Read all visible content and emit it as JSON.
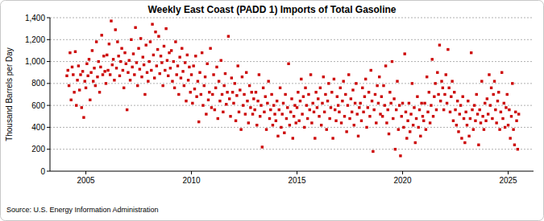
{
  "chart_data": {
    "type": "scatter",
    "title": "Weekly East Coast (PADD 1) Imports of Total Gasoline",
    "y_label": "Thousand Barrels per Day",
    "source": "Source: U.S. Energy Information Administration",
    "color": "#cc0000",
    "marker": "square",
    "grid": true,
    "xlim": [
      2003.3,
      2026.2
    ],
    "xticks": [
      2005,
      2010,
      2015,
      2020,
      2025
    ],
    "ylim": [
      0,
      1400
    ],
    "yticks": [
      0,
      {
        "value": 200,
        "label": "200"
      },
      400,
      600,
      800,
      {
        "value": 1000,
        "label": "1,000"
      },
      {
        "value": 1200,
        "label": "1,200"
      },
      {
        "value": 1400,
        "label": "1,400"
      }
    ],
    "x": [
      2004.1,
      2004.15,
      2004.2,
      2004.25,
      2004.3,
      2004.35,
      2004.4,
      2004.45,
      2004.5,
      2004.55,
      2004.6,
      2004.65,
      2004.7,
      2004.75,
      2004.8,
      2004.85,
      2004.9,
      2004.95,
      2005,
      2005.05,
      2005.1,
      2005.15,
      2005.2,
      2005.25,
      2005.3,
      2005.35,
      2005.4,
      2005.45,
      2005.5,
      2005.55,
      2005.6,
      2005.65,
      2005.7,
      2005.75,
      2005.8,
      2005.85,
      2005.9,
      2005.95,
      2006,
      2006.05,
      2006.1,
      2006.15,
      2006.2,
      2006.25,
      2006.3,
      2006.35,
      2006.4,
      2006.45,
      2006.5,
      2006.55,
      2006.6,
      2006.65,
      2006.7,
      2006.75,
      2006.8,
      2006.85,
      2006.9,
      2006.95,
      2007,
      2007.05,
      2007.1,
      2007.15,
      2007.2,
      2007.25,
      2007.3,
      2007.35,
      2007.4,
      2007.45,
      2007.5,
      2007.55,
      2007.6,
      2007.65,
      2007.7,
      2007.75,
      2007.8,
      2007.85,
      2007.9,
      2007.95,
      2008,
      2008.05,
      2008.1,
      2008.15,
      2008.2,
      2008.25,
      2008.3,
      2008.35,
      2008.4,
      2008.45,
      2008.5,
      2008.55,
      2008.6,
      2008.65,
      2008.7,
      2008.75,
      2008.8,
      2008.85,
      2008.9,
      2008.95,
      2009,
      2009.05,
      2009.1,
      2009.15,
      2009.2,
      2009.25,
      2009.3,
      2009.35,
      2009.4,
      2009.45,
      2009.5,
      2009.55,
      2009.6,
      2009.65,
      2009.7,
      2009.75,
      2009.8,
      2009.85,
      2009.9,
      2009.95,
      2010,
      2010.05,
      2010.1,
      2010.15,
      2010.2,
      2010.25,
      2010.3,
      2010.35,
      2010.4,
      2010.45,
      2010.5,
      2010.55,
      2010.6,
      2010.65,
      2010.7,
      2010.75,
      2010.8,
      2010.85,
      2010.9,
      2010.95,
      2011,
      2011.05,
      2011.1,
      2011.15,
      2011.2,
      2011.25,
      2011.3,
      2011.35,
      2011.4,
      2011.45,
      2011.5,
      2011.55,
      2011.6,
      2011.65,
      2011.7,
      2011.75,
      2011.8,
      2011.85,
      2011.9,
      2011.95,
      2012,
      2012.05,
      2012.1,
      2012.15,
      2012.2,
      2012.25,
      2012.3,
      2012.35,
      2012.4,
      2012.45,
      2012.5,
      2012.55,
      2012.6,
      2012.65,
      2012.7,
      2012.75,
      2012.8,
      2012.85,
      2012.9,
      2012.95,
      2013,
      2013.05,
      2013.1,
      2013.15,
      2013.2,
      2013.25,
      2013.3,
      2013.35,
      2013.4,
      2013.45,
      2013.5,
      2013.55,
      2013.6,
      2013.65,
      2013.7,
      2013.75,
      2013.8,
      2013.85,
      2013.9,
      2013.95,
      2014,
      2014.05,
      2014.1,
      2014.15,
      2014.2,
      2014.25,
      2014.3,
      2014.35,
      2014.4,
      2014.45,
      2014.5,
      2014.55,
      2014.6,
      2014.65,
      2014.7,
      2014.75,
      2014.8,
      2014.85,
      2014.9,
      2014.95,
      2015,
      2015.05,
      2015.1,
      2015.15,
      2015.2,
      2015.25,
      2015.3,
      2015.35,
      2015.4,
      2015.45,
      2015.5,
      2015.55,
      2015.6,
      2015.65,
      2015.7,
      2015.75,
      2015.8,
      2015.85,
      2015.9,
      2015.95,
      2016,
      2016.05,
      2016.1,
      2016.15,
      2016.2,
      2016.25,
      2016.3,
      2016.35,
      2016.4,
      2016.45,
      2016.5,
      2016.55,
      2016.6,
      2016.65,
      2016.7,
      2016.75,
      2016.8,
      2016.85,
      2016.9,
      2016.95,
      2017,
      2017.05,
      2017.1,
      2017.15,
      2017.2,
      2017.25,
      2017.3,
      2017.35,
      2017.4,
      2017.45,
      2017.5,
      2017.55,
      2017.6,
      2017.65,
      2017.7,
      2017.75,
      2017.8,
      2017.85,
      2017.9,
      2017.95,
      2018,
      2018.05,
      2018.1,
      2018.15,
      2018.2,
      2018.25,
      2018.3,
      2018.35,
      2018.4,
      2018.45,
      2018.5,
      2018.55,
      2018.6,
      2018.65,
      2018.7,
      2018.75,
      2018.8,
      2018.85,
      2018.9,
      2018.95,
      2019,
      2019.05,
      2019.1,
      2019.15,
      2019.2,
      2019.25,
      2019.3,
      2019.35,
      2019.4,
      2019.45,
      2019.5,
      2019.55,
      2019.6,
      2019.65,
      2019.7,
      2019.75,
      2019.8,
      2019.85,
      2019.9,
      2019.95,
      2020,
      2020.05,
      2020.1,
      2020.15,
      2020.2,
      2020.25,
      2020.3,
      2020.35,
      2020.4,
      2020.45,
      2020.5,
      2020.55,
      2020.6,
      2020.65,
      2020.7,
      2020.75,
      2020.8,
      2020.85,
      2020.9,
      2020.95,
      2021,
      2021.05,
      2021.1,
      2021.15,
      2021.2,
      2021.25,
      2021.3,
      2021.35,
      2021.4,
      2021.45,
      2021.5,
      2021.55,
      2021.6,
      2021.65,
      2021.7,
      2021.75,
      2021.8,
      2021.85,
      2021.9,
      2021.95,
      2022,
      2022.05,
      2022.1,
      2022.15,
      2022.2,
      2022.25,
      2022.3,
      2022.35,
      2022.4,
      2022.45,
      2022.5,
      2022.55,
      2022.6,
      2022.65,
      2022.7,
      2022.75,
      2022.8,
      2022.85,
      2022.9,
      2022.95,
      2023,
      2023.05,
      2023.1,
      2023.15,
      2023.2,
      2023.25,
      2023.3,
      2023.35,
      2023.4,
      2023.45,
      2023.5,
      2023.55,
      2023.6,
      2023.65,
      2023.7,
      2023.75,
      2023.8,
      2023.85,
      2023.9,
      2023.95,
      2024,
      2024.05,
      2024.1,
      2024.15,
      2024.2,
      2024.25,
      2024.3,
      2024.35,
      2024.4,
      2024.45,
      2024.5,
      2024.55,
      2024.6,
      2024.65,
      2024.7,
      2024.75,
      2024.8,
      2024.85,
      2024.9,
      2024.95,
      2025,
      2025.05,
      2025.1,
      2025.15,
      2025.2,
      2025.25,
      2025.3,
      2025.35,
      2025.4,
      2025.45,
      2025.5
    ],
    "values": [
      870,
      920,
      780,
      1080,
      650,
      950,
      880,
      720,
      1090,
      600,
      830,
      960,
      740,
      880,
      580,
      910,
      490,
      820,
      760,
      980,
      870,
      1020,
      650,
      900,
      1100,
      820,
      940,
      780,
      1180,
      860,
      1000,
      720,
      950,
      1240,
      880,
      1050,
      910,
      800,
      1060,
      920,
      1160,
      880,
      1370,
      970,
      1020,
      830,
      1290,
      940,
      1180,
      1050,
      870,
      1000,
      1120,
      920,
      760,
      1080,
      980,
      560,
      900,
      1010,
      830,
      1200,
      950,
      1070,
      880,
      1310,
      990,
      780,
      1120,
      930,
      1210,
      860,
      1040,
      970,
      700,
      1150,
      900,
      820,
      1000,
      1180,
      920,
      1340,
      1060,
      850,
      1270,
      960,
      1110,
      1230,
      890,
      1050,
      990,
      780,
      1140,
      920,
      1300,
      1010,
      870,
      1080,
      940,
      1100,
      820,
      1000,
      760,
      1180,
      880,
      960,
      700,
      1040,
      850,
      1120,
      910,
      780,
      990,
      640,
      1060,
      830,
      950,
      720,
      880,
      620,
      960,
      750,
      1050,
      680,
      820,
      450,
      900,
      700,
      1080,
      600,
      780,
      860,
      520,
      980,
      650,
      720,
      1120,
      580,
      700,
      880,
      560,
      760,
      950,
      480,
      820,
      640,
      1010,
      700,
      540,
      780,
      890,
      610,
      720,
      1230,
      660,
      500,
      850,
      720,
      620,
      800,
      460,
      690,
      960,
      540,
      740,
      380,
      860,
      600,
      700,
      520,
      900,
      640,
      440,
      780,
      580,
      720,
      520,
      660,
      560,
      720,
      420,
      640,
      880,
      500,
      600,
      220,
      760,
      540,
      680,
      380,
      620,
      820,
      480,
      560,
      700,
      420,
      600,
      520,
      460,
      640,
      320,
      560,
      760,
      400,
      520,
      620,
      350,
      700,
      480,
      580,
      980,
      420,
      540,
      660,
      300,
      500,
      600,
      440,
      580,
      720,
      460,
      640,
      840,
      520,
      680,
      400,
      760,
      600,
      480,
      700,
      560,
      880,
      440,
      620,
      540,
      300,
      720,
      580,
      660,
      500,
      760,
      420,
      620,
      860,
      540,
      700,
      380,
      640,
      800,
      480,
      580,
      720,
      300,
      840,
      560,
      460,
      680,
      600,
      540,
      760,
      440,
      640,
      820,
      500,
      700,
      360,
      600,
      880,
      480,
      660,
      540,
      740,
      420,
      620,
      800,
      520,
      320,
      580,
      620,
      460,
      760,
      540,
      680,
      840,
      400,
      580,
      720,
      500,
      920,
      640,
      180,
      560,
      700,
      440,
      780,
      620,
      860,
      520,
      680,
      500,
      780,
      600,
      960,
      440,
      560,
      340,
      720,
      620,
      1000,
      480,
      660,
      200,
      560,
      820,
      380,
      600,
      140,
      500,
      620,
      400,
      1070,
      540,
      300,
      460,
      620,
      360,
      520,
      800,
      420,
      580,
      260,
      480,
      680,
      400,
      560,
      320,
      620,
      500,
      460,
      620,
      380,
      860,
      540,
      720,
      440,
      600,
      1020,
      500,
      680,
      800,
      560,
      900,
      700,
      1150,
      640,
      820,
      760,
      560,
      700,
      880,
      620,
      1110,
      760,
      540,
      680,
      820,
      460,
      720,
      560,
      420,
      640,
      360,
      520,
      600,
      300,
      680,
      480,
      260,
      540,
      420,
      640,
      320,
      480,
      1080,
      560,
      380,
      600,
      460,
      700,
      520,
      240,
      560,
      440,
      820,
      500,
      380,
      620,
      460,
      660,
      520,
      880,
      600,
      760,
      480,
      700,
      820,
      560,
      440,
      640,
      720,
      380,
      540,
      900,
      480,
      620,
      400,
      580,
      700,
      420,
      560,
      300,
      500,
      800,
      380,
      240,
      540,
      460,
      200,
      520
    ]
  }
}
